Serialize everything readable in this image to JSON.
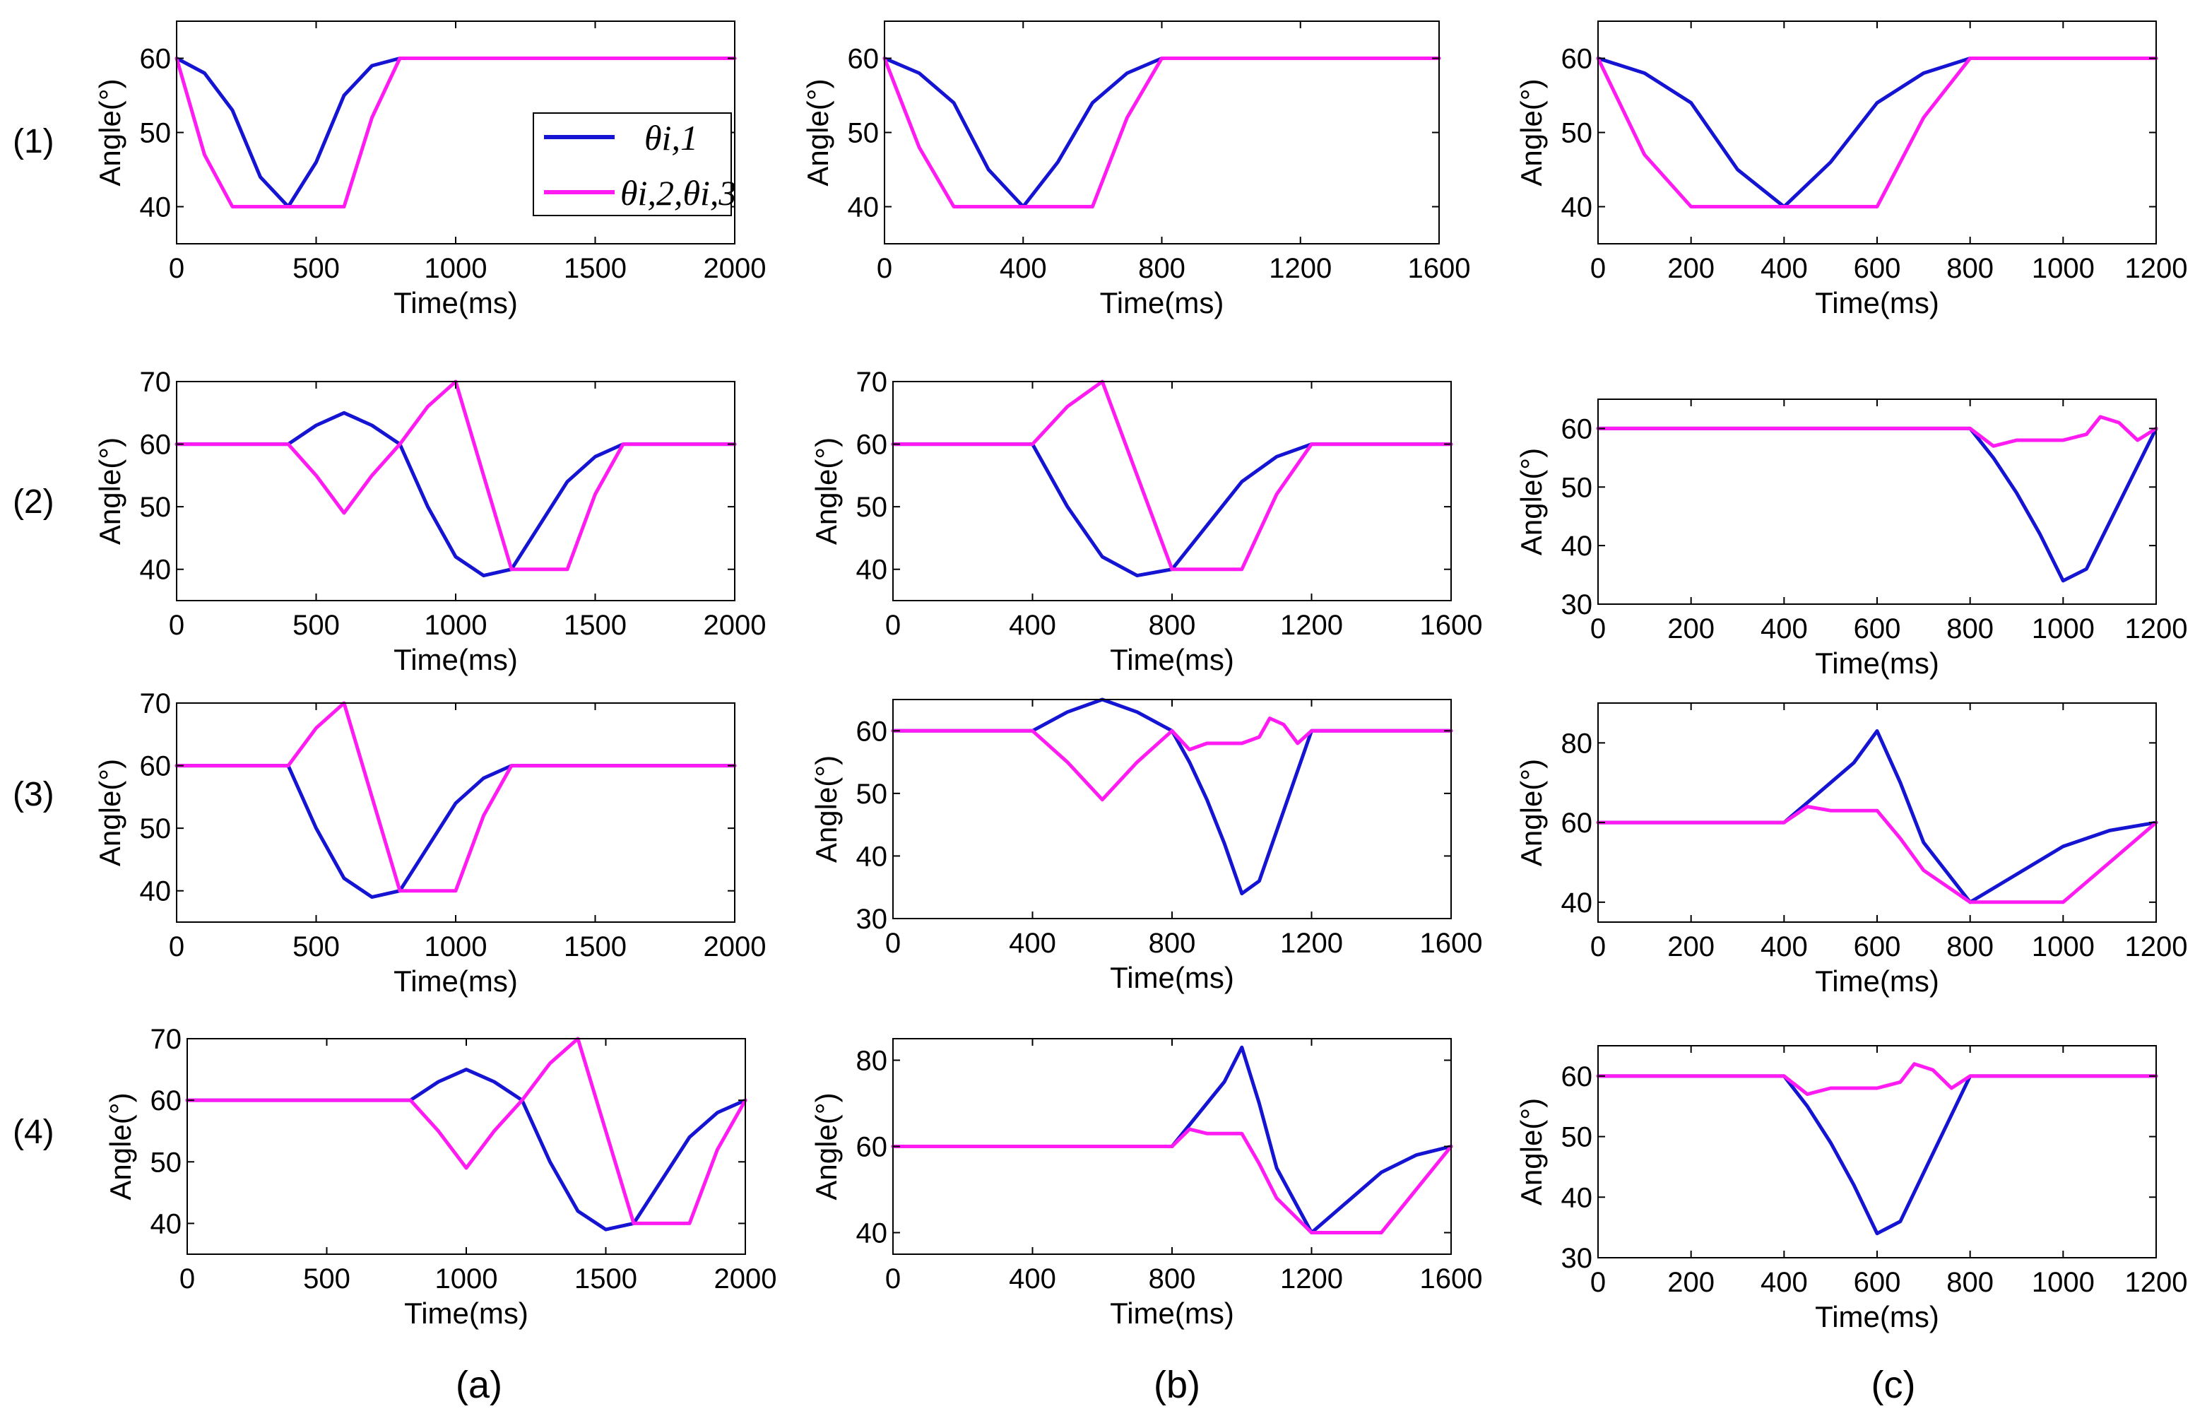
{
  "figure": {
    "row_labels": [
      "(1)",
      "(2)",
      "(3)",
      "(4)"
    ],
    "column_labels": [
      "(a)",
      "(b)",
      "(c)"
    ],
    "colors": {
      "series1": "#1414d2",
      "series2": "#ff1bf2"
    }
  },
  "legend": {
    "series1_label": "θi,1",
    "series2_label": "θi,2,θi,3"
  },
  "chart_data": [
    {
      "id": "1a",
      "type": "line",
      "xlabel": "Time(ms)",
      "ylabel": "Angle(°)",
      "xlim": [
        0,
        2000
      ],
      "ylim": [
        35,
        65
      ],
      "xticks": [
        0,
        500,
        1000,
        1500,
        2000
      ],
      "yticks": [
        40,
        50,
        60
      ],
      "series": [
        {
          "name": "θi,1",
          "x": [
            0,
            100,
            200,
            300,
            400,
            500,
            600,
            700,
            800,
            2000
          ],
          "y": [
            60,
            58,
            53,
            44,
            40,
            46,
            55,
            59,
            60,
            60
          ]
        },
        {
          "name": "θi,2,θi,3",
          "x": [
            0,
            100,
            200,
            400,
            600,
            700,
            800,
            2000
          ],
          "y": [
            60,
            47,
            40,
            40,
            40,
            52,
            60,
            60
          ]
        }
      ]
    },
    {
      "id": "1b",
      "type": "line",
      "xlabel": "Time(ms)",
      "ylabel": "Angle(°)",
      "xlim": [
        0,
        1600
      ],
      "ylim": [
        35,
        65
      ],
      "xticks": [
        0,
        400,
        800,
        1200,
        1600
      ],
      "yticks": [
        40,
        50,
        60
      ],
      "series": [
        {
          "name": "θi,1",
          "x": [
            0,
            100,
            200,
            300,
            400,
            500,
            600,
            700,
            800,
            1600
          ],
          "y": [
            60,
            58,
            54,
            45,
            40,
            46,
            54,
            58,
            60,
            60
          ]
        },
        {
          "name": "θi,2,θi,3",
          "x": [
            0,
            100,
            200,
            400,
            600,
            700,
            800,
            1600
          ],
          "y": [
            60,
            48,
            40,
            40,
            40,
            52,
            60,
            60
          ]
        }
      ]
    },
    {
      "id": "1c",
      "type": "line",
      "xlabel": "Time(ms)",
      "ylabel": "Angle(°)",
      "xlim": [
        0,
        1200
      ],
      "ylim": [
        35,
        65
      ],
      "xticks": [
        0,
        200,
        400,
        600,
        800,
        1000,
        1200
      ],
      "yticks": [
        40,
        50,
        60
      ],
      "series": [
        {
          "name": "θi,1",
          "x": [
            0,
            100,
            200,
            300,
            400,
            500,
            600,
            700,
            800,
            1200
          ],
          "y": [
            60,
            58,
            54,
            45,
            40,
            46,
            54,
            58,
            60,
            60
          ]
        },
        {
          "name": "θi,2,θi,3",
          "x": [
            0,
            100,
            200,
            400,
            600,
            700,
            800,
            1200
          ],
          "y": [
            60,
            47,
            40,
            40,
            40,
            52,
            60,
            60
          ]
        }
      ]
    },
    {
      "id": "2a",
      "type": "line",
      "xlabel": "Time(ms)",
      "ylabel": "Angle(°)",
      "xlim": [
        0,
        2000
      ],
      "ylim": [
        35,
        70
      ],
      "xticks": [
        0,
        500,
        1000,
        1500,
        2000
      ],
      "yticks": [
        40,
        50,
        60,
        70
      ],
      "series": [
        {
          "name": "θi,1",
          "x": [
            0,
            400,
            500,
            600,
            700,
            800,
            900,
            1000,
            1100,
            1200,
            1300,
            1400,
            1500,
            1600,
            2000
          ],
          "y": [
            60,
            60,
            63,
            65,
            63,
            60,
            50,
            42,
            39,
            40,
            47,
            54,
            58,
            60,
            60
          ]
        },
        {
          "name": "θi,2,θi,3",
          "x": [
            0,
            400,
            500,
            600,
            700,
            800,
            900,
            1000,
            1100,
            1200,
            1400,
            1500,
            1600,
            2000
          ],
          "y": [
            60,
            60,
            55,
            49,
            55,
            60,
            66,
            70,
            55,
            40,
            40,
            52,
            60,
            60
          ]
        }
      ]
    },
    {
      "id": "2b",
      "type": "line",
      "xlabel": "Time(ms)",
      "ylabel": "Angle(°)",
      "xlim": [
        0,
        1600
      ],
      "ylim": [
        35,
        70
      ],
      "xticks": [
        0,
        400,
        800,
        1200,
        1600
      ],
      "yticks": [
        40,
        50,
        60,
        70
      ],
      "series": [
        {
          "name": "θi,1",
          "x": [
            0,
            400,
            500,
            600,
            700,
            800,
            900,
            1000,
            1100,
            1200,
            1600
          ],
          "y": [
            60,
            60,
            50,
            42,
            39,
            40,
            47,
            54,
            58,
            60,
            60
          ]
        },
        {
          "name": "θi,2,θi,3",
          "x": [
            0,
            400,
            500,
            600,
            700,
            800,
            1000,
            1100,
            1200,
            1600
          ],
          "y": [
            60,
            60,
            66,
            70,
            55,
            40,
            40,
            52,
            60,
            60
          ]
        }
      ]
    },
    {
      "id": "2c",
      "type": "line",
      "xlabel": "Time(ms)",
      "ylabel": "Angle(°)",
      "xlim": [
        0,
        1200
      ],
      "ylim": [
        30,
        65
      ],
      "xticks": [
        0,
        200,
        400,
        600,
        800,
        1000,
        1200
      ],
      "yticks": [
        30,
        40,
        50,
        60
      ],
      "series": [
        {
          "name": "θi,1",
          "x": [
            0,
            800,
            850,
            900,
            950,
            1000,
            1050,
            1100,
            1150,
            1200
          ],
          "y": [
            60,
            60,
            55,
            49,
            42,
            34,
            36,
            44,
            52,
            60
          ]
        },
        {
          "name": "θi,2,θi,3",
          "x": [
            0,
            800,
            850,
            900,
            950,
            1000,
            1050,
            1080,
            1120,
            1160,
            1200
          ],
          "y": [
            60,
            60,
            57,
            58,
            58,
            58,
            59,
            62,
            61,
            58,
            60
          ]
        }
      ]
    },
    {
      "id": "3a",
      "type": "line",
      "xlabel": "Time(ms)",
      "ylabel": "Angle(°)",
      "xlim": [
        0,
        2000
      ],
      "ylim": [
        35,
        70
      ],
      "xticks": [
        0,
        500,
        1000,
        1500,
        2000
      ],
      "yticks": [
        40,
        50,
        60,
        70
      ],
      "series": [
        {
          "name": "θi,1",
          "x": [
            0,
            400,
            500,
            600,
            700,
            800,
            900,
            1000,
            1100,
            1200,
            2000
          ],
          "y": [
            60,
            60,
            50,
            42,
            39,
            40,
            47,
            54,
            58,
            60,
            60
          ]
        },
        {
          "name": "θi,2,θi,3",
          "x": [
            0,
            400,
            500,
            600,
            700,
            800,
            1000,
            1100,
            1200,
            2000
          ],
          "y": [
            60,
            60,
            66,
            70,
            55,
            40,
            40,
            52,
            60,
            60
          ]
        }
      ]
    },
    {
      "id": "3b",
      "type": "line",
      "xlabel": "Time(ms)",
      "ylabel": "Angle(°)",
      "xlim": [
        0,
        1600
      ],
      "ylim": [
        30,
        65
      ],
      "xticks": [
        0,
        400,
        800,
        1200,
        1600
      ],
      "yticks": [
        30,
        40,
        50,
        60
      ],
      "series": [
        {
          "name": "θi,1",
          "x": [
            0,
            400,
            500,
            600,
            700,
            800,
            850,
            900,
            950,
            1000,
            1050,
            1100,
            1150,
            1200,
            1600
          ],
          "y": [
            60,
            60,
            63,
            65,
            63,
            60,
            55,
            49,
            42,
            34,
            36,
            44,
            52,
            60,
            60
          ]
        },
        {
          "name": "θi,2,θi,3",
          "x": [
            0,
            400,
            500,
            600,
            700,
            800,
            850,
            900,
            950,
            1000,
            1050,
            1080,
            1120,
            1160,
            1200,
            1600
          ],
          "y": [
            60,
            60,
            55,
            49,
            55,
            60,
            57,
            58,
            58,
            58,
            59,
            62,
            61,
            58,
            60,
            60
          ]
        }
      ]
    },
    {
      "id": "3c",
      "type": "line",
      "xlabel": "Time(ms)",
      "ylabel": "Angle(°)",
      "xlim": [
        0,
        1200
      ],
      "ylim": [
        35,
        90
      ],
      "xticks": [
        0,
        200,
        400,
        600,
        800,
        1000,
        1200
      ],
      "yticks": [
        40,
        60,
        80
      ],
      "series": [
        {
          "name": "θi,1",
          "x": [
            0,
            400,
            450,
            500,
            550,
            600,
            650,
            700,
            800,
            900,
            1000,
            1100,
            1200
          ],
          "y": [
            60,
            60,
            65,
            70,
            75,
            83,
            70,
            55,
            40,
            47,
            54,
            58,
            60
          ]
        },
        {
          "name": "θi,2,θi,3",
          "x": [
            0,
            400,
            450,
            500,
            550,
            600,
            650,
            700,
            800,
            1000,
            1100,
            1200
          ],
          "y": [
            60,
            60,
            64,
            63,
            63,
            63,
            56,
            48,
            40,
            40,
            50,
            60
          ]
        }
      ]
    },
    {
      "id": "4a",
      "type": "line",
      "xlabel": "Time(ms)",
      "ylabel": "Angle(°)",
      "xlim": [
        0,
        2000
      ],
      "ylim": [
        35,
        70
      ],
      "xticks": [
        0,
        500,
        1000,
        1500,
        2000
      ],
      "yticks": [
        40,
        50,
        60,
        70
      ],
      "series": [
        {
          "name": "θi,1",
          "x": [
            0,
            800,
            900,
            1000,
            1100,
            1200,
            1300,
            1400,
            1500,
            1600,
            1700,
            1800,
            1900,
            2000
          ],
          "y": [
            60,
            60,
            63,
            65,
            63,
            60,
            50,
            42,
            39,
            40,
            47,
            54,
            58,
            60
          ]
        },
        {
          "name": "θi,2,θi,3",
          "x": [
            0,
            800,
            900,
            1000,
            1100,
            1200,
            1300,
            1400,
            1500,
            1600,
            1800,
            1900,
            2000
          ],
          "y": [
            60,
            60,
            55,
            49,
            55,
            60,
            66,
            70,
            55,
            40,
            40,
            52,
            60
          ]
        }
      ]
    },
    {
      "id": "4b",
      "type": "line",
      "xlabel": "Time(ms)",
      "ylabel": "Angle(°)",
      "xlim": [
        0,
        1600
      ],
      "ylim": [
        35,
        85
      ],
      "xticks": [
        0,
        400,
        800,
        1200,
        1600
      ],
      "yticks": [
        40,
        60,
        80
      ],
      "series": [
        {
          "name": "θi,1",
          "x": [
            0,
            800,
            850,
            900,
            950,
            1000,
            1050,
            1100,
            1200,
            1300,
            1400,
            1500,
            1600
          ],
          "y": [
            60,
            60,
            65,
            70,
            75,
            83,
            70,
            55,
            40,
            47,
            54,
            58,
            60
          ]
        },
        {
          "name": "θi,2,θi,3",
          "x": [
            0,
            800,
            850,
            900,
            950,
            1000,
            1050,
            1100,
            1200,
            1400,
            1500,
            1600
          ],
          "y": [
            60,
            60,
            64,
            63,
            63,
            63,
            56,
            48,
            40,
            40,
            50,
            60
          ]
        }
      ]
    },
    {
      "id": "4c",
      "type": "line",
      "xlabel": "Time(ms)",
      "ylabel": "Angle(°)",
      "xlim": [
        0,
        1200
      ],
      "ylim": [
        30,
        65
      ],
      "xticks": [
        0,
        200,
        400,
        600,
        800,
        1000,
        1200
      ],
      "yticks": [
        30,
        40,
        50,
        60
      ],
      "series": [
        {
          "name": "θi,1",
          "x": [
            0,
            400,
            450,
            500,
            550,
            600,
            650,
            700,
            750,
            800,
            1200
          ],
          "y": [
            60,
            60,
            55,
            49,
            42,
            34,
            36,
            44,
            52,
            60,
            60
          ]
        },
        {
          "name": "θi,2,θi,3",
          "x": [
            0,
            400,
            450,
            500,
            550,
            600,
            650,
            680,
            720,
            760,
            800,
            1200
          ],
          "y": [
            60,
            60,
            57,
            58,
            58,
            58,
            59,
            62,
            61,
            58,
            60,
            60
          ]
        }
      ]
    }
  ]
}
